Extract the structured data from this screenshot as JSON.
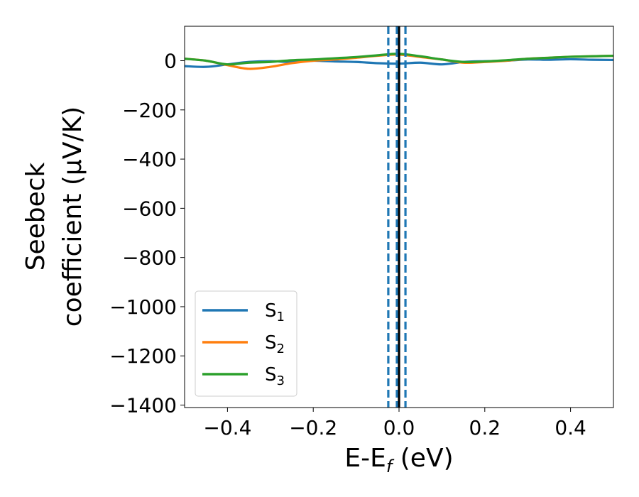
{
  "chart_data": {
    "type": "line",
    "xlabel_main": "E-E",
    "xlabel_sub": "f",
    "xlabel_unit": " (eV)",
    "ylabel_line1": "Seebeck",
    "ylabel_line2": "coefficient  (μV/K)",
    "xlim": [
      -0.5,
      0.5
    ],
    "ylim": [
      -1410,
      140
    ],
    "xticks": [
      -0.4,
      -0.2,
      0.0,
      0.2,
      0.4
    ],
    "xtick_labels": [
      "−0.4",
      "−0.2",
      "0.0",
      "0.2",
      "0.4"
    ],
    "yticks": [
      0,
      -200,
      -400,
      -600,
      -800,
      -1000,
      -1200,
      -1400
    ],
    "ytick_labels": [
      "0",
      "−200",
      "−400",
      "−600",
      "−800",
      "−1000",
      "−1200",
      "−1400"
    ],
    "legend_position": "lower-left",
    "vlines": [
      {
        "x": 0.0,
        "color": "#000000",
        "style": "solid"
      },
      {
        "x": -0.025,
        "color": "#1f77b4",
        "style": "dashed"
      },
      {
        "x": -0.005,
        "color": "#1f77b4",
        "style": "dashed"
      },
      {
        "x": 0.015,
        "color": "#1f77b4",
        "style": "dashed"
      }
    ],
    "x": [
      -0.5,
      -0.45,
      -0.4,
      -0.35,
      -0.3,
      -0.25,
      -0.2,
      -0.15,
      -0.1,
      -0.05,
      0.0,
      0.05,
      0.1,
      0.15,
      0.2,
      0.25,
      0.3,
      0.35,
      0.4,
      0.45,
      0.5
    ],
    "series": [
      {
        "name": "S",
        "sub": "1",
        "color": "#1f77b4",
        "values": [
          -22,
          -25,
          -15,
          -5,
          -2,
          -5,
          0,
          -3,
          -5,
          -10,
          -12,
          -8,
          -15,
          -5,
          -2,
          0,
          5,
          4,
          6,
          4,
          3
        ]
      },
      {
        "name": "S",
        "sub": "2",
        "color": "#ff7f0e",
        "values": [
          8,
          0,
          -18,
          -33,
          -25,
          -10,
          0,
          5,
          12,
          20,
          25,
          15,
          5,
          -8,
          -5,
          0,
          8,
          12,
          16,
          18,
          20
        ]
      },
      {
        "name": "S",
        "sub": "3",
        "color": "#2ca02c",
        "values": [
          8,
          0,
          -15,
          -8,
          -5,
          2,
          5,
          10,
          15,
          22,
          28,
          18,
          5,
          -5,
          -3,
          2,
          8,
          12,
          16,
          18,
          20
        ]
      }
    ]
  }
}
